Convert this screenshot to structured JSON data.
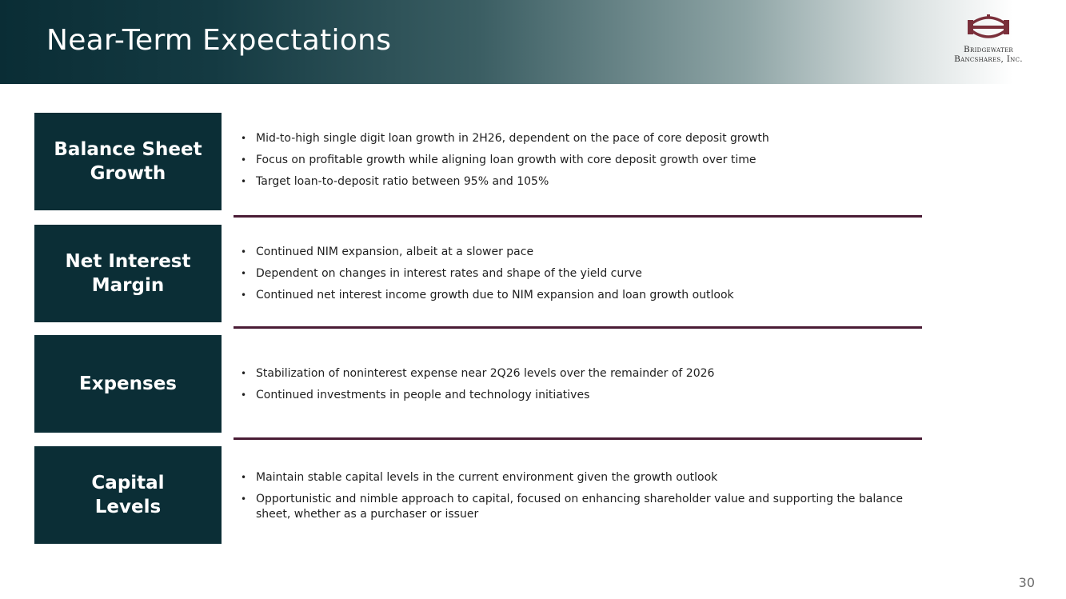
{
  "slide": {
    "title": "Near-Term Expectations",
    "page_number": "30"
  },
  "logo": {
    "line1": "Bridgewater",
    "line2": "Bancshares, Inc."
  },
  "sections": [
    {
      "heading_line1": "Balance Sheet",
      "heading_line2": "Growth",
      "bullets": [
        "Mid-to-high single digit loan growth in 2H26, dependent on the pace of core deposit growth",
        "Focus on profitable growth while aligning loan growth with core deposit growth over time",
        "Target loan-to-deposit ratio between 95% and 105%"
      ]
    },
    {
      "heading_line1": "Net Interest",
      "heading_line2": "Margin",
      "bullets": [
        "Continued NIM expansion, albeit at a slower pace",
        "Dependent on changes in interest rates and shape of the yield curve",
        "Continued net interest income growth due to NIM expansion and loan growth outlook"
      ]
    },
    {
      "heading_line1": "Expenses",
      "heading_line2": "",
      "bullets": [
        "Stabilization of noninterest expense near 2Q26 levels over the remainder of 2026",
        "Continued investments in people and technology initiatives"
      ]
    },
    {
      "heading_line1": "Capital",
      "heading_line2": "Levels",
      "bullets": [
        "Maintain stable capital levels in the current environment given the growth outlook",
        "Opportunistic and nimble approach to capital, focused on enhancing shareholder value and supporting the balance sheet, whether as a purchaser or issuer"
      ]
    }
  ],
  "colors": {
    "box_background": "#0b2e36",
    "divider": "#4a1c35",
    "logo_accent": "#7a2f3a"
  }
}
